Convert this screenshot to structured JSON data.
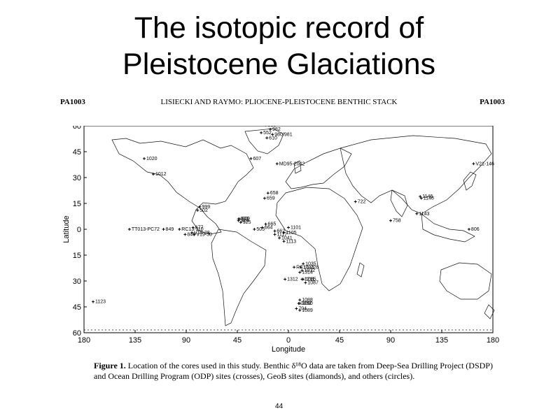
{
  "slide": {
    "title_line1": "The isotopic record of",
    "title_line2": "Pleistocene Glaciations",
    "page_number": "44"
  },
  "figure_header": {
    "left": "PA1003",
    "center": "LISIECKI AND RAYMO: PLIOCENE-PLEISTOCENE BENTHIC STACK",
    "right": "PA1003"
  },
  "map": {
    "xlabel": "Longitude",
    "ylabel": "Latitude",
    "x_ticks": [
      "180",
      "135",
      "90",
      "45",
      "0",
      "45",
      "90",
      "135",
      "180"
    ],
    "y_ticks": [
      "60",
      "45",
      "30",
      "15",
      "0",
      "15",
      "30",
      "45",
      "60"
    ],
    "sites": [
      {
        "label": "984",
        "lon": -23,
        "lat": 61
      },
      {
        "label": "983",
        "lon": -20,
        "lat": 60.5
      },
      {
        "label": "982",
        "lon": -16,
        "lat": 58
      },
      {
        "label": "552",
        "lon": -24,
        "lat": 56
      },
      {
        "label": "980/981",
        "lon": -14,
        "lat": 55
      },
      {
        "label": "610",
        "lon": -19,
        "lat": 53
      },
      {
        "label": "607",
        "lon": -33,
        "lat": 41
      },
      {
        "label": "MD95-2042",
        "lon": -10,
        "lat": 38
      },
      {
        "label": "1020",
        "lon": -127,
        "lat": 41
      },
      {
        "label": "1012",
        "lon": -119,
        "lat": 32
      },
      {
        "label": "V21-146",
        "lon": 163,
        "lat": 38
      },
      {
        "label": "1146",
        "lon": 116,
        "lat": 19
      },
      {
        "label": "1148",
        "lon": 117,
        "lat": 18
      },
      {
        "label": "658",
        "lon": -18,
        "lat": 21
      },
      {
        "label": "659",
        "lon": -21,
        "lat": 18
      },
      {
        "label": "722",
        "lon": 59,
        "lat": 16
      },
      {
        "label": "1143",
        "lon": 113,
        "lat": 9
      },
      {
        "label": "502",
        "lon": -80,
        "lat": 11
      },
      {
        "label": "999",
        "lon": -78,
        "lat": 13
      },
      {
        "label": "927",
        "lon": -44,
        "lat": 6
      },
      {
        "label": "928",
        "lon": -44,
        "lat": 5
      },
      {
        "label": "929",
        "lon": -43,
        "lat": 6
      },
      {
        "label": "925",
        "lon": -42,
        "lat": 4
      },
      {
        "label": "665",
        "lon": -20,
        "lat": 3
      },
      {
        "label": "664",
        "lon": -23,
        "lat": 1
      },
      {
        "label": "1101",
        "lon": 0,
        "lat": 1
      },
      {
        "label": "758",
        "lon": 90,
        "lat": 5
      },
      {
        "label": "806",
        "lon": 159,
        "lat": 0
      },
      {
        "label": "RC13-110",
        "lon": -96,
        "lat": 0
      },
      {
        "label": "677",
        "lon": -84,
        "lat": 1
      },
      {
        "label": "V19-28",
        "lon": -85,
        "lat": -2
      },
      {
        "label": "V19-30",
        "lon": -83,
        "lat": -3
      },
      {
        "label": "849",
        "lon": -110,
        "lat": 0
      },
      {
        "label": "846",
        "lon": -91,
        "lat": -3
      },
      {
        "label": "TT013-PC72",
        "lon": -140,
        "lat": 0
      },
      {
        "label": "1105",
        "lon": -4,
        "lat": -2
      },
      {
        "label": "662",
        "lon": -12,
        "lat": -1
      },
      {
        "label": "1117",
        "lon": -12,
        "lat": -3
      },
      {
        "label": "1041",
        "lon": -8,
        "lat": -5
      },
      {
        "label": "1113",
        "lon": -4,
        "lat": -7
      },
      {
        "label": "505",
        "lon": -30,
        "lat": 0
      },
      {
        "label": "1035",
        "lon": 13,
        "lat": -20
      },
      {
        "label": "1034",
        "lon": 11,
        "lat": -22
      },
      {
        "label": "1032",
        "lon": 12,
        "lat": -24
      },
      {
        "label": "1314",
        "lon": 10,
        "lat": -25
      },
      {
        "label": "1211",
        "lon": 12,
        "lat": -29
      },
      {
        "label": "1085",
        "lon": 13,
        "lat": -29
      },
      {
        "label": "1087",
        "lon": 15,
        "lat": -31
      },
      {
        "label": "RC13-228",
        "lon": 5,
        "lat": -22
      },
      {
        "label": "1312",
        "lon": -3,
        "lat": -29
      },
      {
        "label": "1088",
        "lon": 10,
        "lat": -41
      },
      {
        "label": "1092",
        "lon": 9,
        "lat": -43
      },
      {
        "label": "1090",
        "lon": 10,
        "lat": -43
      },
      {
        "label": "704",
        "lon": 7,
        "lat": -46
      },
      {
        "label": "1089",
        "lon": 10,
        "lat": -47
      },
      {
        "label": "1123",
        "lon": -172,
        "lat": -42
      }
    ]
  },
  "caption": {
    "figure_label": "Figure 1.",
    "text": "Location of the cores used in this study. Benthic δ¹⁸O data are taken from Deep-Sea Drilling Project (DSDP) and Ocean Drilling Program (ODP) sites (crosses), GeoB sites (diamonds), and others (circles)."
  }
}
